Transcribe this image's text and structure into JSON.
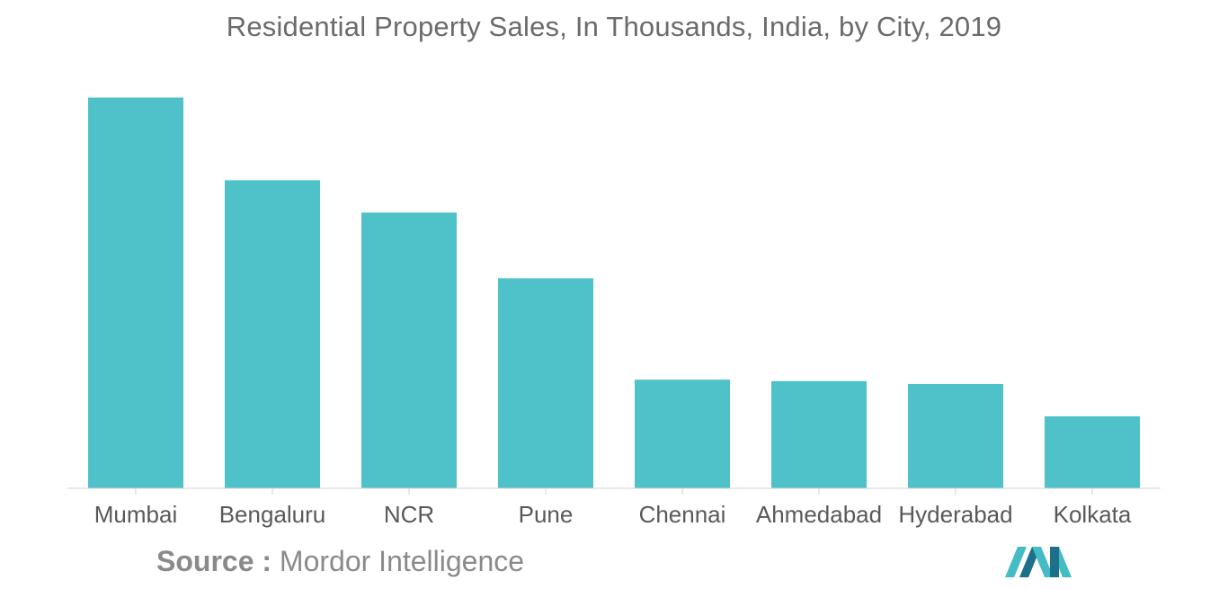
{
  "chart_data": {
    "type": "bar",
    "title": "Residential Property Sales, In Thousands, India, by City, 2019",
    "categories": [
      "Mumbai",
      "Bengaluru",
      "NCR",
      "Pune",
      "Chennai",
      "Ahmedabad",
      "Hyderabad",
      "Kolkata"
    ],
    "values": [
      80.9,
      63.8,
      57.1,
      43.5,
      22.5,
      22.2,
      21.6,
      14.9
    ],
    "xlabel": "",
    "ylabel": "",
    "ylim": [
      0,
      81
    ],
    "grid": false,
    "legend": "none",
    "bar_color": "#4fc2c9"
  },
  "source": {
    "label": "Source :",
    "value": "Mordor Intelligence"
  },
  "colors": {
    "title": "#6b6b6b",
    "tick_label": "#595959",
    "axis": "#d0d0d0",
    "logo_dark": "#1d6f8a",
    "logo_light": "#44bcc4"
  }
}
